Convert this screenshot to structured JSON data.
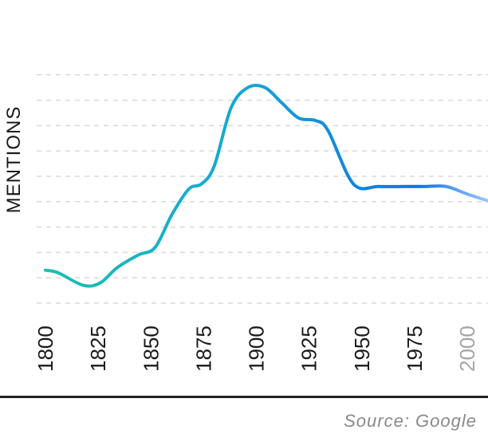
{
  "chart_data": {
    "type": "line",
    "ylabel": "MENTIONS",
    "xlabel": "",
    "source": "Source: Google",
    "x_ticks": [
      "1800",
      "1825",
      "1850",
      "1875",
      "1900",
      "1925",
      "1950",
      "1975",
      "2000"
    ],
    "x_ticks_muted": [
      "2000"
    ],
    "xlim": [
      1800,
      2011
    ],
    "ylim": [
      0,
      10
    ],
    "grid": true,
    "gridlines_y": [
      1,
      2,
      3,
      4,
      5,
      6,
      7,
      8,
      9
    ],
    "series": [
      {
        "x": [
          1800,
          1806,
          1818,
          1826,
          1834,
          1844,
          1852,
          1860,
          1868,
          1874,
          1880,
          1888,
          1896,
          1904,
          1912,
          1920,
          1928,
          1934,
          1946,
          1958,
          1970,
          1980,
          1990,
          2000,
          2011
        ],
        "y": [
          1.3,
          1.2,
          0.7,
          0.8,
          1.4,
          1.9,
          2.2,
          3.5,
          4.5,
          4.7,
          5.4,
          7.7,
          8.5,
          8.5,
          7.9,
          7.3,
          7.2,
          6.8,
          4.7,
          4.6,
          4.6,
          4.6,
          4.6,
          4.3,
          4.0
        ]
      }
    ],
    "colors": {
      "line_start": "#1fc1ae",
      "line_mid": "#14a8d6",
      "line_end": "#0f72e3",
      "line_projected": "#9cc7ff",
      "grid": "#d9d9d9",
      "tick_label": "#1a1a1a",
      "tick_label_muted": "#a6a6a6"
    }
  }
}
